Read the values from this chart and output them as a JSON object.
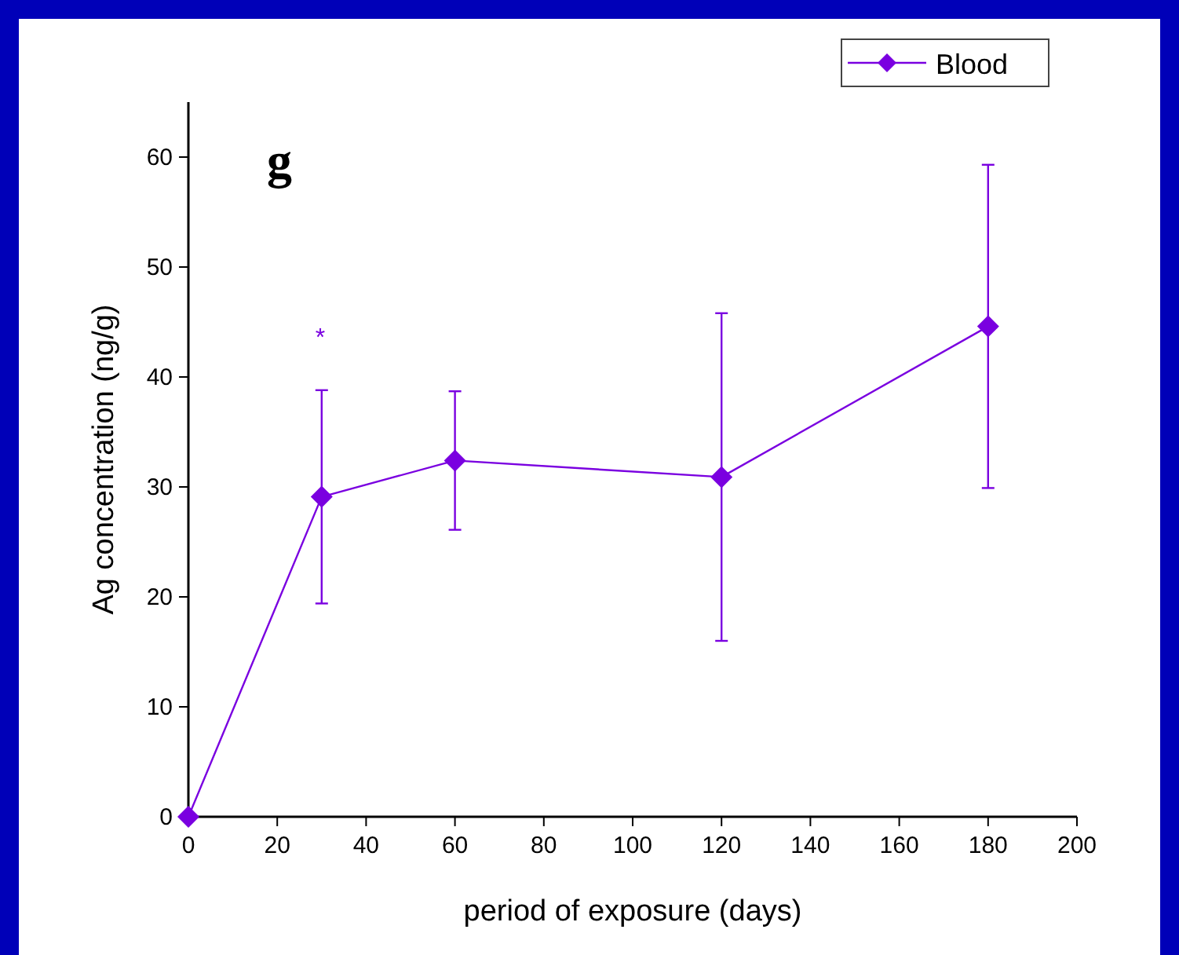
{
  "chart_data": {
    "type": "line",
    "xlabel": "period of exposure (days)",
    "ylabel": "Ag concentration (ng/g)",
    "x": [
      0,
      30,
      60,
      120,
      180
    ],
    "series": [
      {
        "name": "Blood",
        "color": "#7a00e0",
        "values": [
          0,
          29.1,
          32.4,
          30.9,
          44.6
        ],
        "errors": [
          null,
          9.7,
          6.3,
          14.9,
          14.7
        ]
      }
    ],
    "xlim": [
      0,
      200
    ],
    "xticks": [
      0,
      20,
      40,
      60,
      80,
      100,
      120,
      140,
      160,
      180,
      200
    ],
    "ylim": [
      0,
      65
    ],
    "yticks": [
      0,
      10,
      20,
      30,
      40,
      50,
      60
    ],
    "annotations": [
      "g",
      "*"
    ],
    "legend": "top right",
    "marker": "diamond",
    "line_style": "solid",
    "grid": false
  }
}
